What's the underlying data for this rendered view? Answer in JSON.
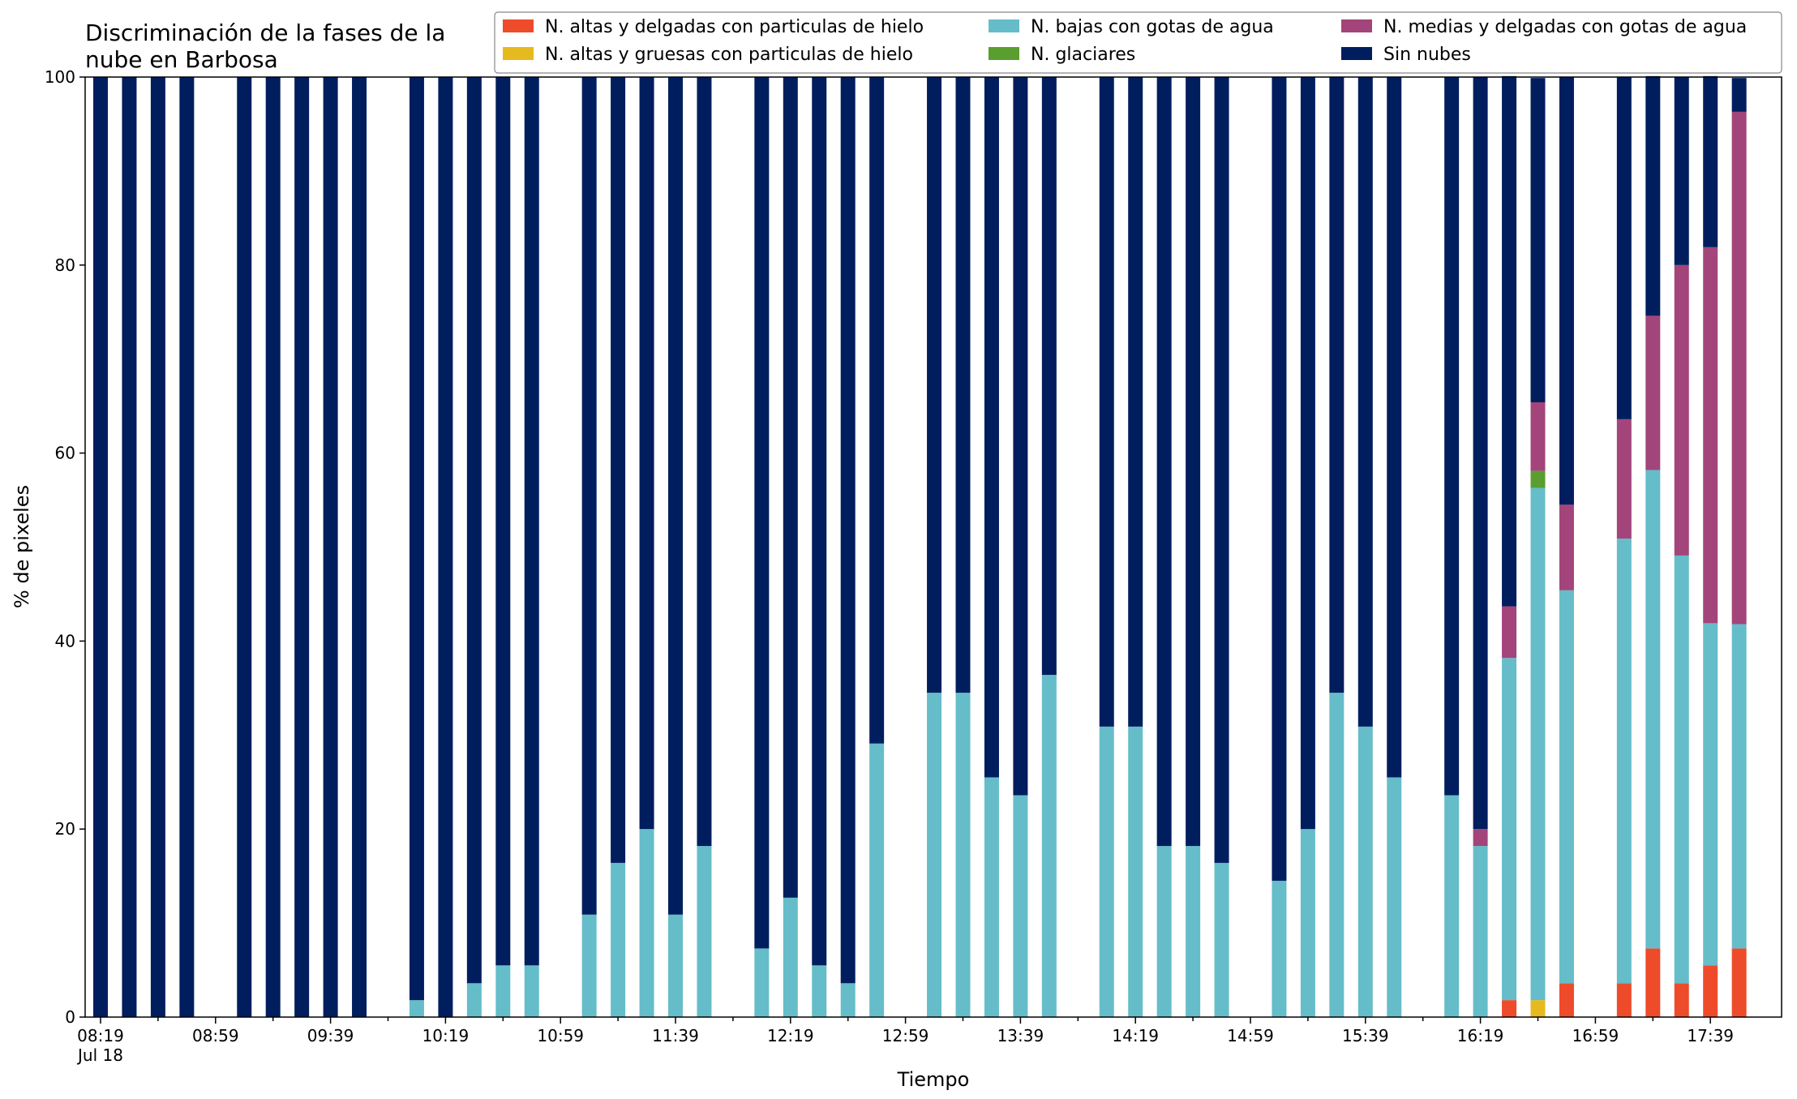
{
  "chart_data": {
    "type": "bar",
    "stacked": true,
    "title": "Discriminación de la fases de la\nnube en Barbosa",
    "xlabel": "Tiempo",
    "ylabel": "% de pixeles",
    "ylim": [
      0,
      100
    ],
    "yticks": [
      0,
      20,
      40,
      60,
      80,
      100
    ],
    "grid": false,
    "legend_position": "top-right",
    "x_start": "08:19",
    "x_date_label": "Jul 18",
    "x_step_minutes": 10,
    "x_tick_labels": [
      "08:19",
      "08:59",
      "09:39",
      "10:19",
      "10:59",
      "11:39",
      "12:19",
      "12:59",
      "13:39",
      "14:19",
      "14:59",
      "15:39",
      "16:19",
      "16:59",
      "17:39"
    ],
    "x": [
      "08:19",
      "08:29",
      "08:39",
      "08:49",
      "08:59",
      "09:09",
      "09:19",
      "09:29",
      "09:39",
      "09:49",
      "09:59",
      "10:09",
      "10:19",
      "10:29",
      "10:39",
      "10:49",
      "10:59",
      "11:09",
      "11:19",
      "11:29",
      "11:39",
      "11:49",
      "11:59",
      "12:09",
      "12:19",
      "12:29",
      "12:39",
      "12:49",
      "12:59",
      "13:09",
      "13:19",
      "13:29",
      "13:39",
      "13:49",
      "13:59",
      "14:09",
      "14:19",
      "14:29",
      "14:39",
      "14:49",
      "14:59",
      "15:09",
      "15:19",
      "15:29",
      "15:39",
      "15:49",
      "15:59",
      "16:09",
      "16:19",
      "16:29",
      "16:39",
      "16:49",
      "16:59",
      "17:09",
      "17:19",
      "17:29",
      "17:39",
      "17:49"
    ],
    "series": [
      {
        "name": "N. altas y delgadas con particulas de hielo",
        "color": "#ee4b2b",
        "values": [
          0,
          0,
          0,
          0,
          null,
          0,
          0,
          0,
          0,
          0,
          null,
          0,
          0,
          0,
          0,
          0,
          null,
          0,
          0,
          0,
          0,
          0,
          null,
          0,
          0,
          0,
          0,
          0,
          null,
          0,
          0,
          0,
          0,
          0,
          null,
          0,
          0,
          0,
          0,
          0,
          null,
          0,
          0,
          0,
          0,
          0,
          null,
          0,
          0,
          1.8,
          0,
          3.6,
          null,
          3.6,
          7.3,
          3.6,
          5.5,
          7.3
        ]
      },
      {
        "name": "N. altas y gruesas con particulas de hielo",
        "color": "#e6b91e",
        "values": [
          0,
          0,
          0,
          0,
          null,
          0,
          0,
          0,
          0,
          0,
          null,
          0,
          0,
          0,
          0,
          0,
          null,
          0,
          0,
          0,
          0,
          0,
          null,
          0,
          0,
          0,
          0,
          0,
          null,
          0,
          0,
          0,
          0,
          0,
          null,
          0,
          0,
          0,
          0,
          0,
          null,
          0,
          0,
          0,
          0,
          0,
          null,
          0,
          0,
          0,
          1.8,
          0,
          null,
          0,
          0,
          0,
          0,
          0
        ]
      },
      {
        "name": "N. bajas con gotas de agua",
        "color": "#65bdc9",
        "values": [
          0,
          0,
          0,
          0,
          null,
          0,
          0,
          0,
          0,
          0,
          null,
          1.8,
          0,
          3.6,
          5.5,
          5.5,
          null,
          10.9,
          16.4,
          20.0,
          10.9,
          18.2,
          null,
          7.3,
          12.7,
          5.5,
          3.6,
          29.1,
          null,
          34.5,
          34.5,
          25.5,
          23.6,
          36.4,
          null,
          30.9,
          30.9,
          18.2,
          18.2,
          16.4,
          null,
          14.5,
          20.0,
          34.5,
          30.9,
          25.5,
          null,
          23.6,
          18.2,
          36.4,
          54.5,
          41.8,
          null,
          47.3,
          50.9,
          45.5,
          36.4,
          34.5
        ]
      },
      {
        "name": "N. glaciares",
        "color": "#5a9e2f",
        "values": [
          0,
          0,
          0,
          0,
          null,
          0,
          0,
          0,
          0,
          0,
          null,
          0,
          0,
          0,
          0,
          0,
          null,
          0,
          0,
          0,
          0,
          0,
          null,
          0,
          0,
          0,
          0,
          0,
          null,
          0,
          0,
          0,
          0,
          0,
          null,
          0,
          0,
          0,
          0,
          0,
          null,
          0,
          0,
          0,
          0,
          0,
          null,
          0,
          0,
          0,
          1.8,
          0,
          null,
          0,
          0,
          0,
          0,
          0
        ]
      },
      {
        "name": "N. medias y delgadas con gotas de agua",
        "color": "#a3457a",
        "values": [
          0,
          0,
          0,
          0,
          null,
          0,
          0,
          0,
          0,
          0,
          null,
          0,
          0,
          0,
          0,
          0,
          null,
          0,
          0,
          0,
          0,
          0,
          null,
          0,
          0,
          0,
          0,
          0,
          null,
          0,
          0,
          0,
          0,
          0,
          null,
          0,
          0,
          0,
          0,
          0,
          null,
          0,
          0,
          0,
          0,
          0,
          null,
          0,
          1.8,
          5.5,
          7.3,
          9.1,
          null,
          12.7,
          16.4,
          30.9,
          40.0,
          54.5
        ]
      },
      {
        "name": "Sin nubes",
        "color": "#001e5e",
        "values": [
          100,
          100,
          100,
          100,
          null,
          100,
          100,
          100,
          100,
          100,
          null,
          98.2,
          100,
          96.4,
          94.5,
          94.5,
          null,
          89.1,
          83.6,
          80.0,
          89.1,
          81.8,
          null,
          92.7,
          87.3,
          94.5,
          96.4,
          70.9,
          null,
          65.5,
          65.5,
          74.5,
          76.4,
          63.6,
          null,
          69.1,
          69.1,
          81.8,
          81.8,
          83.6,
          null,
          85.5,
          80.0,
          65.5,
          69.1,
          74.5,
          null,
          76.4,
          80.0,
          56.4,
          34.5,
          45.5,
          null,
          36.4,
          25.5,
          20.0,
          18.2,
          3.6
        ]
      }
    ]
  }
}
